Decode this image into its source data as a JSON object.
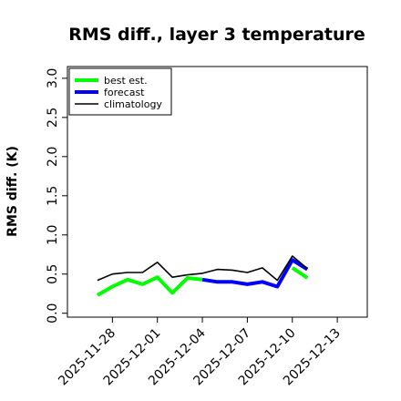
{
  "chart_data": {
    "type": "line",
    "title": "RMS diff., layer 3 temperature",
    "xlabel": "",
    "ylabel": "RMS diff. (K)",
    "ylim": [
      -0.05,
      3.15
    ],
    "xlim": [
      "2025-11-25",
      "2025-12-15"
    ],
    "x_ticks": [
      {
        "date": "2025-11-28",
        "label": "2025-11-28",
        "color": "#000000"
      },
      {
        "date": "2025-12-01",
        "label": "2025-12-01",
        "color": "#000000"
      },
      {
        "date": "2025-12-04",
        "label": "2025-12-04",
        "color": "#228b22"
      },
      {
        "date": "2025-12-07",
        "label": "2025-12-07",
        "color": "#000000"
      },
      {
        "date": "2025-12-10",
        "label": "2025-12-10",
        "color": "#000000"
      },
      {
        "date": "2025-12-13",
        "label": "2025-12-13",
        "color": "#000000"
      }
    ],
    "y_ticks": [
      "0.0",
      "0.5",
      "1.0",
      "1.5",
      "2.0",
      "2.5",
      "3.0"
    ],
    "legend_position": "top-left",
    "grid": false,
    "series": [
      {
        "name": "best est.",
        "color": "#00ff00",
        "width": 4,
        "points": [
          [
            "2025-11-27",
            0.23
          ],
          [
            "2025-11-28",
            0.34
          ],
          [
            "2025-11-29",
            0.43
          ],
          [
            "2025-11-30",
            0.37
          ],
          [
            "2025-12-01",
            0.46
          ],
          [
            "2025-12-02",
            0.26
          ],
          [
            "2025-12-03",
            0.45
          ],
          [
            "2025-12-04",
            0.43
          ]
        ]
      },
      {
        "name": "forecast",
        "color": "#0000ff",
        "width": 4,
        "points": [
          [
            "2025-12-04",
            0.43
          ],
          [
            "2025-12-05",
            0.4
          ],
          [
            "2025-12-06",
            0.4
          ],
          [
            "2025-12-07",
            0.37
          ],
          [
            "2025-12-08",
            0.4
          ],
          [
            "2025-12-09",
            0.34
          ],
          [
            "2025-12-10",
            0.68
          ],
          [
            "2025-12-11",
            0.56
          ]
        ]
      },
      {
        "name": "climatology",
        "color": "#000000",
        "width": 1.6,
        "points": [
          [
            "2025-11-27",
            0.42
          ],
          [
            "2025-11-28",
            0.5
          ],
          [
            "2025-11-29",
            0.52
          ],
          [
            "2025-11-30",
            0.52
          ],
          [
            "2025-12-01",
            0.65
          ],
          [
            "2025-12-02",
            0.46
          ],
          [
            "2025-12-03",
            0.49
          ],
          [
            "2025-12-04",
            0.51
          ],
          [
            "2025-12-05",
            0.56
          ],
          [
            "2025-12-06",
            0.55
          ],
          [
            "2025-12-07",
            0.52
          ],
          [
            "2025-12-08",
            0.58
          ],
          [
            "2025-12-09",
            0.42
          ],
          [
            "2025-12-10",
            0.73
          ],
          [
            "2025-12-11",
            0.57
          ]
        ]
      }
    ],
    "extra_series": [
      {
        "color": "#00ff00",
        "width": 4,
        "points": [
          [
            "2025-12-10",
            0.58
          ],
          [
            "2025-12-11",
            0.45
          ]
        ]
      }
    ]
  }
}
